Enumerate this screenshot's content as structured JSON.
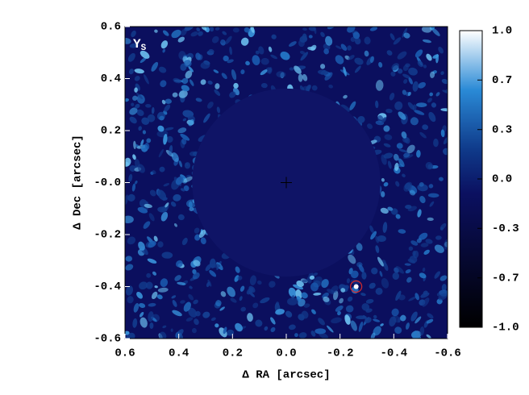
{
  "chart_data": {
    "type": "image",
    "annotation": "Y",
    "annotation_sub": "S",
    "xlabel": "Δ RA [arcsec]",
    "ylabel": "Δ Dec [arcsec]",
    "xlim": [
      0.6,
      -0.6
    ],
    "ylim": [
      -0.6,
      0.6
    ],
    "xticks": [
      0.6,
      0.4,
      0.2,
      {
        "value": 0,
        "label": "0.0"
      },
      -0.2,
      -0.4,
      -0.6
    ],
    "yticks": [
      0.6,
      0.4,
      0.2,
      {
        "value": 0,
        "label": "-0.0"
      },
      -0.2,
      -0.4,
      -0.6
    ],
    "mask_radius": 0.35,
    "companion": {
      "x": -0.26,
      "y": -0.4,
      "color": "#d42a2a"
    },
    "zlim": [
      -1,
      1
    ],
    "zticks": [
      {
        "value": 1,
        "label": "1.0"
      },
      {
        "value": 0.667,
        "label": "0.7"
      },
      {
        "value": 0.333,
        "label": "0.3"
      },
      {
        "value": 0,
        "label": "0.0"
      },
      {
        "value": -0.333,
        "label": "-0.3"
      },
      {
        "value": -0.667,
        "label": "-0.7"
      },
      {
        "value": -1,
        "label": "-1.0"
      }
    ]
  }
}
